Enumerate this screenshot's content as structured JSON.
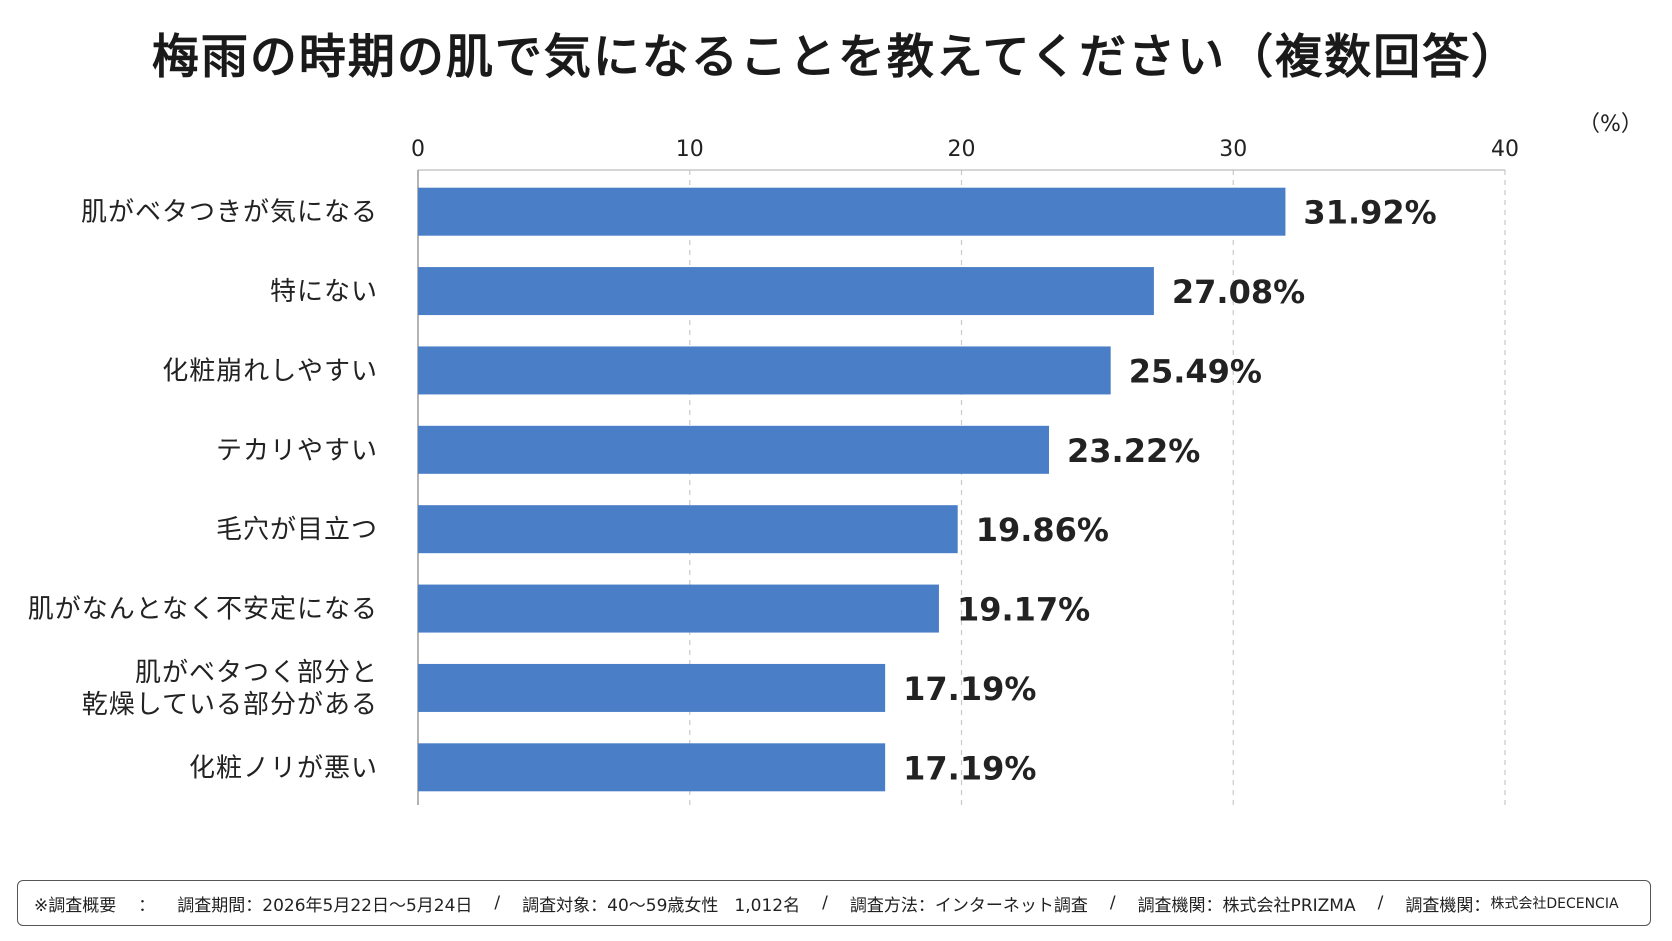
{
  "title": "梅雨の時期の肌で気になることを教えてください（複数回答）",
  "unit_label": "（%）",
  "chart_data": {
    "type": "bar",
    "orientation": "horizontal",
    "categories": [
      "肌がベタつきが気になる",
      "特にない",
      "化粧崩れしやすい",
      "テカリやすい",
      "毛穴が目立つ",
      "肌がなんとなく不安定になる",
      "肌がベタつく部分と\n乾燥している部分がある",
      "化粧ノリが悪い"
    ],
    "values": [
      31.92,
      27.08,
      25.49,
      23.22,
      19.86,
      19.17,
      17.19,
      17.19
    ],
    "value_labels": [
      "31.92%",
      "27.08%",
      "25.49%",
      "23.22%",
      "19.86%",
      "19.17%",
      "17.19%",
      "17.19%"
    ],
    "xlim": [
      0,
      40
    ],
    "xticks": [
      0,
      10,
      20,
      30,
      40
    ],
    "xtick_labels": [
      "0",
      "10",
      "20",
      "30",
      "40"
    ],
    "grid": true,
    "bar_color": "#4a7ec6"
  },
  "footer": {
    "overview_label": "※調査概要",
    "colon": "：",
    "period": "調査期間：2026年5月22日〜5月24日",
    "target": "調査対象：40〜59歳女性",
    "count": "1,012名",
    "method": "調査方法：インターネット調査",
    "org1": "調査機関：株式会社PRIZMA",
    "org2_label": "調査機関：",
    "org2_name": "株式会社DECENCIA",
    "separator": "/"
  }
}
